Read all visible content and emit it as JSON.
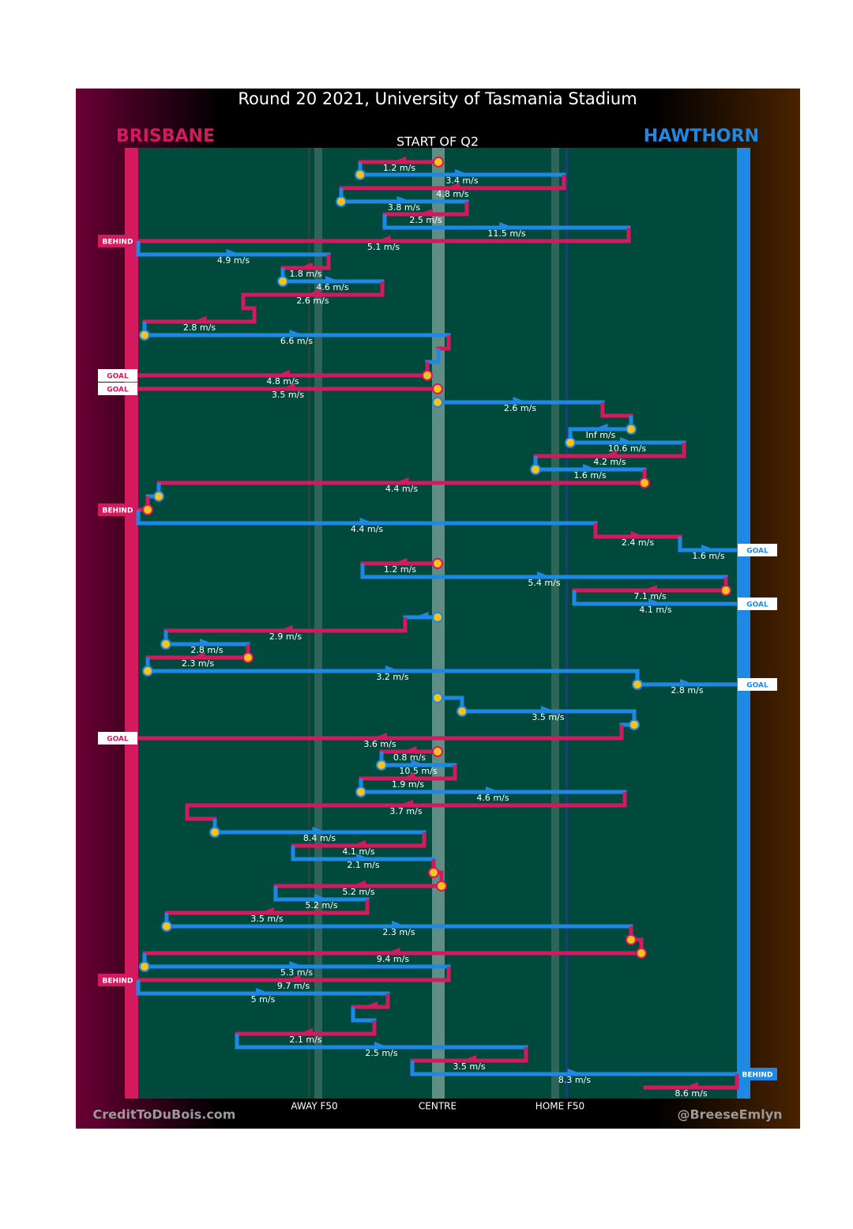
{
  "title": "Round 20 2021, University of Tasmania Stadium",
  "teams": {
    "left": "BRISBANE",
    "right": "HAWTHORN"
  },
  "period": "START OF Q2",
  "zones": [
    "AWAY F50",
    "CENTRE",
    "HOME F50"
  ],
  "speeds": [
    "1.2 m/s",
    "3.4 m/s",
    "4.8 m/s",
    "3.8 m/s",
    "2.5 m/s",
    "11.5 m/s",
    "5.1 m/s",
    "4.9 m/s",
    "1.8 m/s",
    "4.6 m/s",
    "2.6 m/s",
    "2.8 m/s",
    "6.6 m/s",
    "4.8 m/s",
    "3.5 m/s",
    "2.6 m/s",
    "Inf m/s",
    "10.6 m/s",
    "4.2 m/s",
    "1.6 m/s",
    "4.4 m/s",
    "4.4 m/s",
    "2.4 m/s",
    "1.6 m/s",
    "1.2 m/s",
    "5.4 m/s",
    "7.1 m/s",
    "4.1 m/s",
    "2.9 m/s",
    "2.8 m/s",
    "2.3 m/s",
    "3.2 m/s",
    "2.8 m/s",
    "3.5 m/s",
    "3.6 m/s",
    "0.8 m/s",
    "10.5 m/s",
    "1.9 m/s",
    "4.6 m/s",
    "3.7 m/s",
    "8.4 m/s",
    "4.1 m/s",
    "2.1 m/s",
    "5.2 m/s",
    "5.2 m/s",
    "3.5 m/s",
    "2.3 m/s",
    "9.4 m/s",
    "5.3 m/s",
    "9.7 m/s",
    "5 m/s",
    "2.1 m/s",
    "2.5 m/s",
    "3.5 m/s",
    "8.3 m/s",
    "8.6 m/s"
  ],
  "outcomes": [
    "BEHIND",
    "GOAL",
    "GOAL",
    "BEHIND",
    "GOAL",
    "GOAL",
    "GOAL",
    "GOAL",
    "BEHIND",
    "BEHIND"
  ],
  "credits": {
    "left": "CreditToDuBois.com",
    "right": "@BreeseEmlyn"
  }
}
